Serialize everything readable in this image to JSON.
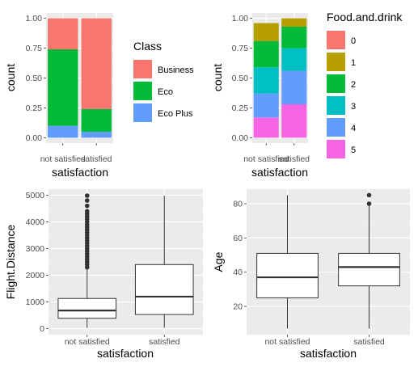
{
  "colors": {
    "panel_bg": "#ebebeb",
    "grid_major": "#ffffff",
    "grid_minor": "#f5f5f5",
    "tick_text": "#4d4d4d",
    "box_line": "#333333"
  },
  "chart_data": [
    {
      "id": "class",
      "type": "bar",
      "stacked": "fill",
      "xlabel": "satisfaction",
      "ylabel": "count",
      "categories": [
        "not satisfied",
        "satisfied"
      ],
      "ylim": [
        0,
        1
      ],
      "yticks": [
        "0.00",
        "0.25",
        "0.50",
        "0.75",
        "1.00"
      ],
      "legend": {
        "title": "Class",
        "position": "right"
      },
      "series": [
        {
          "name": "Business",
          "color": "#F8766D",
          "values": [
            0.26,
            0.76
          ]
        },
        {
          "name": "Eco",
          "color": "#00BA38",
          "values": [
            0.64,
            0.19
          ]
        },
        {
          "name": "Eco Plus",
          "color": "#619CFF",
          "values": [
            0.1,
            0.05
          ]
        }
      ],
      "grid": true
    },
    {
      "id": "food",
      "type": "bar",
      "stacked": "fill",
      "xlabel": "satisfaction",
      "ylabel": "count",
      "categories": [
        "not satisfied",
        "satisfied"
      ],
      "ylim": [
        0,
        1
      ],
      "yticks": [
        "0.00",
        "0.25",
        "0.50",
        "0.75",
        "1.00"
      ],
      "legend": {
        "title": "Food.and.drink",
        "position": "right"
      },
      "series": [
        {
          "name": "0",
          "color": "#B79F00",
          "values": [
            0.0,
            0.0
          ]
        },
        {
          "name": "1",
          "color": "#B79F00",
          "values": [
            0.15,
            0.07
          ]
        },
        {
          "name": "2",
          "color": "#00BA38",
          "values": [
            0.22,
            0.18
          ]
        },
        {
          "name": "3",
          "color": "#00BFC4",
          "values": [
            0.22,
            0.19
          ]
        },
        {
          "name": "4",
          "color": "#619CFF",
          "values": [
            0.2,
            0.28
          ]
        },
        {
          "name": "5",
          "color": "#F564E3",
          "values": [
            0.17,
            0.28
          ]
        }
      ],
      "legend_colors": [
        "#F8766D",
        "#B79F00",
        "#00BA38",
        "#00BFC4",
        "#619CFF",
        "#F564E3"
      ],
      "grid": true
    },
    {
      "id": "distance",
      "type": "box",
      "xlabel": "satisfaction",
      "ylabel": "Flight.Distance",
      "categories": [
        "not satisfied",
        "satisfied"
      ],
      "ylim": [
        0,
        5000
      ],
      "yticks": [
        0,
        1000,
        2000,
        3000,
        4000,
        5000
      ],
      "boxes": [
        {
          "min": 31,
          "q1": 390,
          "median": 680,
          "q3": 1130,
          "max": 2230,
          "outliers": [
            2300,
            2400,
            2500,
            2600,
            2700,
            2800,
            2900,
            3000,
            3100,
            3200,
            3300,
            3400,
            3500,
            3600,
            3700,
            3800,
            3900,
            4000,
            4100,
            4200,
            4300,
            4400,
            4600,
            4800,
            4983
          ]
        },
        {
          "min": 31,
          "q1": 530,
          "median": 1200,
          "q3": 2400,
          "max": 4983,
          "outliers": []
        }
      ],
      "grid": true
    },
    {
      "id": "age",
      "type": "box",
      "xlabel": "satisfaction",
      "ylabel": "Age",
      "categories": [
        "not satisfied",
        "satisfied"
      ],
      "ylim": [
        7,
        85
      ],
      "yticks": [
        20,
        40,
        60,
        80
      ],
      "boxes": [
        {
          "min": 7,
          "q1": 25,
          "median": 37,
          "q3": 51,
          "max": 85,
          "outliers": []
        },
        {
          "min": 7,
          "q1": 32,
          "median": 43,
          "q3": 51,
          "max": 79,
          "outliers": [
            80,
            85
          ]
        }
      ],
      "grid": true
    }
  ]
}
